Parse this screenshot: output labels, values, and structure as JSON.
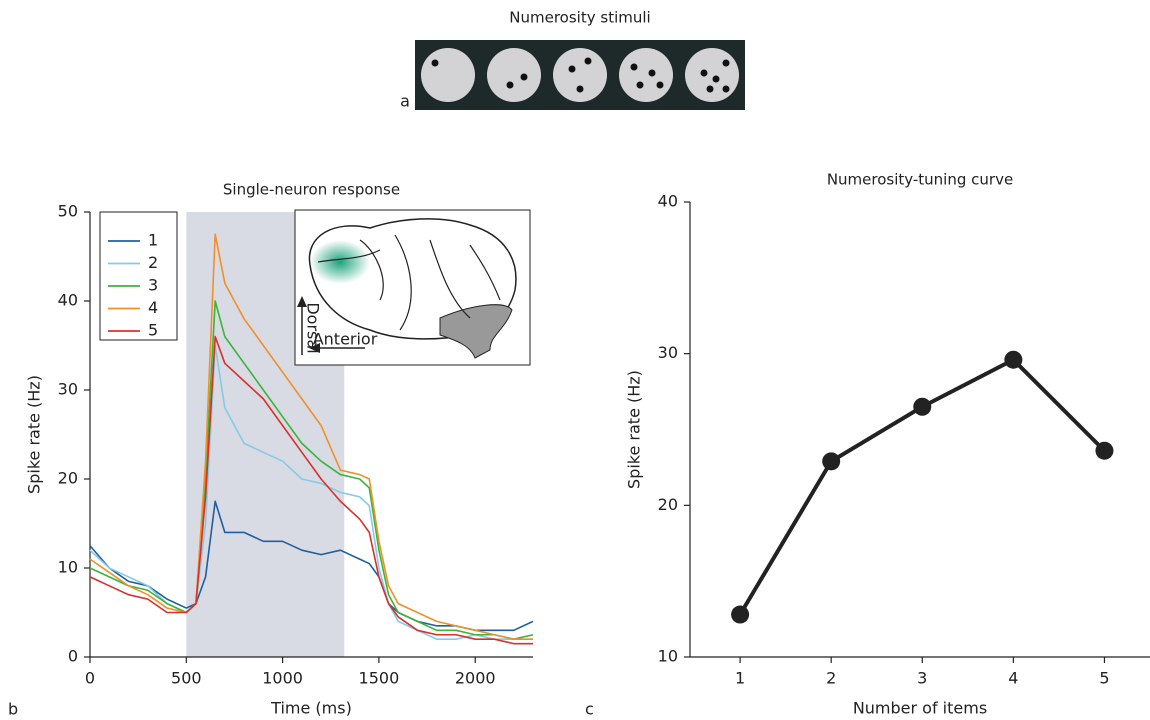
{
  "stimuli": {
    "title": "Numerosity stimuli"
  },
  "panel_labels": [
    "a",
    "b",
    "c"
  ],
  "inset": {
    "dorsal": "Dorsal",
    "anterior": "Anterior"
  },
  "chart_data": [
    {
      "type": "line",
      "title": "Single-neuron response",
      "x_label": "Time (ms)",
      "y_label": "Spike rate (Hz)",
      "x": [
        0,
        100,
        200,
        300,
        400,
        500,
        550,
        600,
        650,
        700,
        800,
        900,
        1000,
        1100,
        1200,
        1300,
        1400,
        1450,
        1500,
        1550,
        1600,
        1700,
        1800,
        1900,
        2000,
        2100,
        2200,
        2300
      ],
      "xlim": [
        0,
        2300
      ],
      "xticks": [
        0,
        500,
        1000,
        1500,
        2000
      ],
      "ylim": [
        0,
        50
      ],
      "yticks": [
        0,
        10,
        20,
        30,
        40,
        50
      ],
      "shade": [
        500,
        1320
      ],
      "series": [
        {
          "name": "1",
          "color": "#1f5fa0",
          "values": [
            12.5,
            10,
            8.5,
            8,
            6.5,
            5.5,
            6,
            9,
            17.5,
            14,
            14,
            13,
            13,
            12,
            11.5,
            12,
            11,
            10.5,
            9,
            6,
            5,
            4,
            3.5,
            3.5,
            3,
            3,
            3,
            4
          ]
        },
        {
          "name": "2",
          "color": "#86cbe6",
          "values": [
            12,
            10,
            9,
            8,
            6,
            5,
            6,
            15,
            35,
            28,
            24,
            23,
            22,
            20,
            19.5,
            18.5,
            18,
            17,
            10,
            6,
            4,
            3,
            2,
            2,
            2.5,
            2,
            2,
            2
          ]
        },
        {
          "name": "3",
          "color": "#3cb43c",
          "values": [
            10,
            9,
            8,
            7.5,
            6,
            5,
            6,
            20,
            40,
            36,
            33,
            30,
            27,
            24,
            22,
            20.5,
            20,
            19,
            12,
            7,
            5,
            4,
            3,
            3,
            2.5,
            2.5,
            2,
            2.5
          ]
        },
        {
          "name": "4",
          "color": "#f0902a",
          "values": [
            11,
            9.5,
            8,
            7,
            5.5,
            5,
            6,
            22,
            47.5,
            42,
            38,
            35,
            32,
            29,
            26,
            21,
            20.5,
            20,
            13,
            8,
            6,
            5,
            4,
            3.5,
            3,
            2.5,
            2,
            2
          ]
        },
        {
          "name": "5",
          "color": "#d9302a",
          "values": [
            9,
            8,
            7,
            6.5,
            5,
            5,
            6,
            18,
            36,
            33,
            31,
            29,
            26,
            23,
            20,
            17.5,
            15.5,
            14,
            9,
            6,
            4.5,
            3,
            2.5,
            2.5,
            2,
            2,
            1.5,
            1.5
          ]
        }
      ]
    },
    {
      "type": "line",
      "title": "Numerosity-tuning curve",
      "x_label": "Number of items",
      "y_label": "Spike rate (Hz)",
      "x": [
        1,
        2,
        3,
        4,
        5
      ],
      "values": [
        12.8,
        22.9,
        26.5,
        29.6,
        23.6
      ],
      "color": "#222222",
      "xlim": [
        0.45,
        5.5
      ],
      "xticks": [
        1,
        2,
        3,
        4,
        5
      ],
      "ylim": [
        10,
        40
      ],
      "yticks": [
        10,
        20,
        30,
        40
      ]
    }
  ]
}
